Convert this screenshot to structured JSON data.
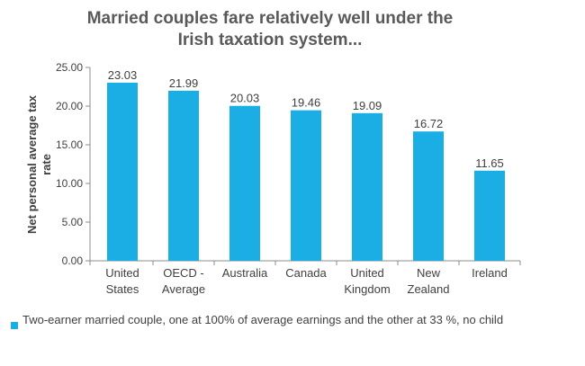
{
  "chart_data": {
    "type": "bar",
    "title": "Married couples fare relatively well under the Irish taxation system...",
    "title_lines": [
      "Married couples fare relatively well under the",
      "Irish taxation system..."
    ],
    "ylabel": "Net personal average tax rate",
    "ylabel_lines": [
      "Net personal average tax",
      "rate"
    ],
    "xlabel": "",
    "ylim": [
      0,
      25
    ],
    "yticks": [
      "0.00",
      "5.00",
      "10.00",
      "15.00",
      "20.00",
      "25.00"
    ],
    "categories": [
      [
        "United",
        "States"
      ],
      [
        "OECD -",
        "Average"
      ],
      [
        "Australia"
      ],
      [
        "Canada"
      ],
      [
        "United",
        "Kingdom"
      ],
      [
        "New",
        "Zealand"
      ],
      [
        "Ireland"
      ]
    ],
    "series": [
      {
        "name": "Two-earner married couple, one at 100% of average earnings and the other at 33 %, no child",
        "color": "#1aaee5",
        "values": [
          23.03,
          21.99,
          20.03,
          19.46,
          19.09,
          16.72,
          11.65
        ],
        "labels": [
          "23.03",
          "21.99",
          "20.03",
          "19.46",
          "19.09",
          "16.72",
          "11.65"
        ]
      }
    ],
    "grid": false,
    "legend_position": "bottom-left"
  }
}
